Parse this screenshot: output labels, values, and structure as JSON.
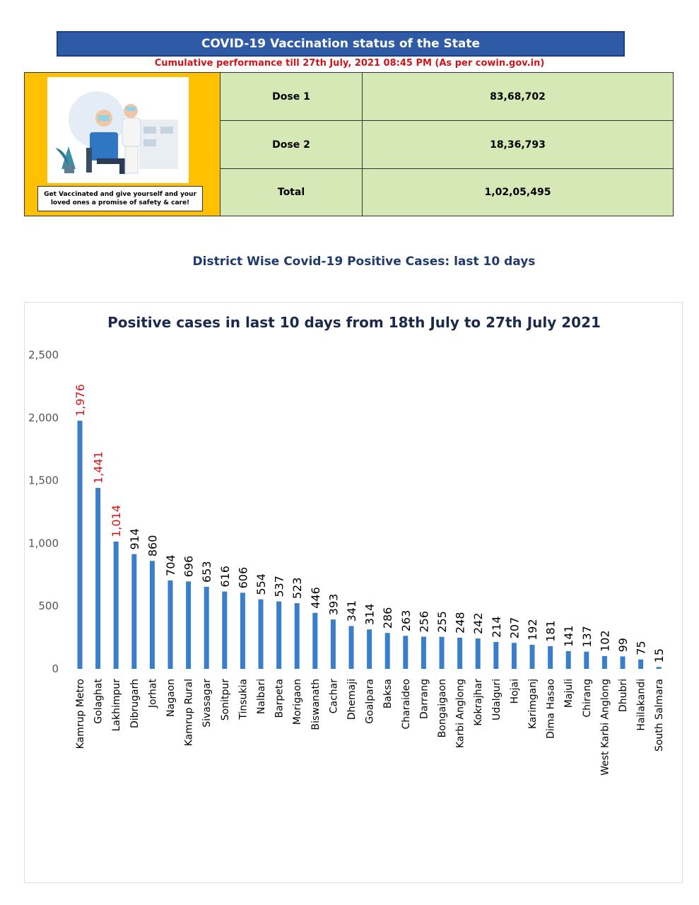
{
  "header": {
    "title": "COVID-19 Vaccination status of the State",
    "subtitle": "Cumulative performance till 27th July, 2021 08:45 PM (As per cowin.gov.in)"
  },
  "promo": {
    "text": "Get Vaccinated and give yourself and your loved ones a promise of safety & care!"
  },
  "vaccination": [
    {
      "label": "Dose 1",
      "value": "83,68,702"
    },
    {
      "label": "Dose 2",
      "value": "18,36,793"
    },
    {
      "label": "Total",
      "value": "1,02,05,495"
    }
  ],
  "section_title": "District Wise Covid-19 Positive Cases: last 10 days",
  "colors": {
    "header": "#2e5aa6",
    "subtitle": "#d1141b",
    "table": "#d6e8b6",
    "promo": "#ffc000",
    "bar": "#3a7dc9",
    "highlight_label": "#d1141b"
  },
  "chart_data": {
    "type": "bar",
    "title": "Positive cases in last 10 days from 18th July to 27th July 2021",
    "ylim": [
      0,
      2500
    ],
    "yticks": [
      "2,500",
      "2,000",
      "1,500",
      "1,000",
      "500",
      "0"
    ],
    "categories": [
      "Kamrup Metro",
      "Golaghat",
      "Lakhimpur",
      "Dibrugarh",
      "Jorhat",
      "Nagaon",
      "Kamrup Rural",
      "Sivasagar",
      "Sonitpur",
      "Tinsukia",
      "Nalbari",
      "Barpeta",
      "Morigaon",
      "Biswanath",
      "Cachar",
      "Dhemaji",
      "Goalpara",
      "Baksa",
      "Charaideo",
      "Darrang",
      "Bongaigaon",
      "Karbi Anglong",
      "Kokrajhar",
      "Udalguri",
      "Hojai",
      "Karimganj",
      "Dima Hasao",
      "Majuli",
      "Chirang",
      "West Karbi Anglong",
      "Dhubri",
      "Hailakandi",
      "South Salmara"
    ],
    "values": [
      1976,
      1441,
      1014,
      914,
      860,
      704,
      696,
      653,
      616,
      606,
      554,
      537,
      523,
      446,
      393,
      341,
      314,
      286,
      263,
      256,
      255,
      248,
      242,
      214,
      207,
      192,
      181,
      141,
      137,
      102,
      99,
      75,
      15
    ],
    "value_labels": [
      "1,976",
      "1,441",
      "1,014",
      "914",
      "860",
      "704",
      "696",
      "653",
      "616",
      "606",
      "554",
      "537",
      "523",
      "446",
      "393",
      "341",
      "314",
      "286",
      "263",
      "256",
      "255",
      "248",
      "242",
      "214",
      "207",
      "192",
      "181",
      "141",
      "137",
      "102",
      "99",
      "75",
      "15"
    ],
    "highlighted": [
      0,
      1,
      2
    ]
  }
}
